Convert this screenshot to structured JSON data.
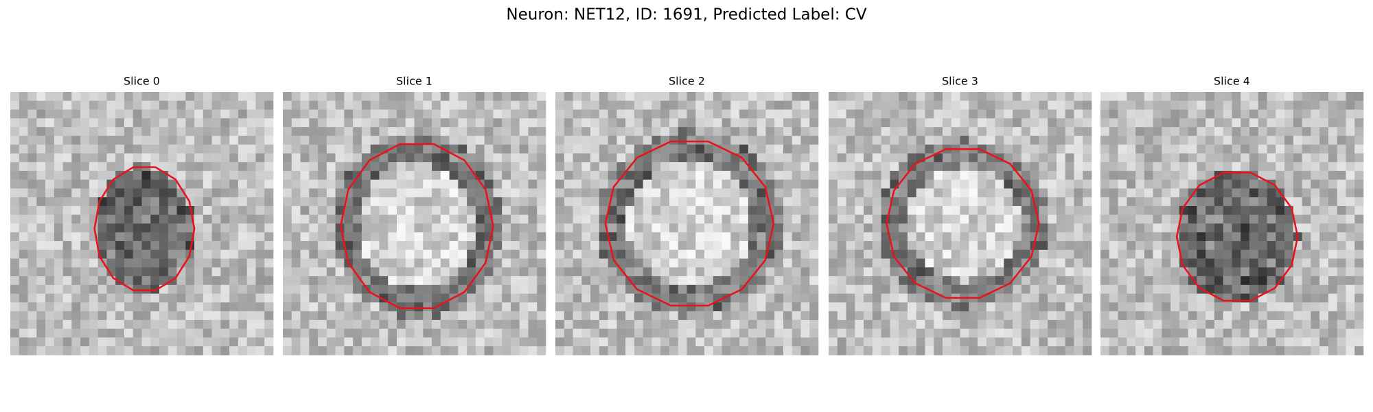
{
  "title": "Neuron: NET12, ID: 1691, Predicted Label: CV",
  "panels": [
    {
      "title": "Slice 0"
    },
    {
      "title": "Slice 1"
    },
    {
      "title": "Slice 2"
    },
    {
      "title": "Slice 3"
    },
    {
      "title": "Slice 4"
    }
  ]
}
